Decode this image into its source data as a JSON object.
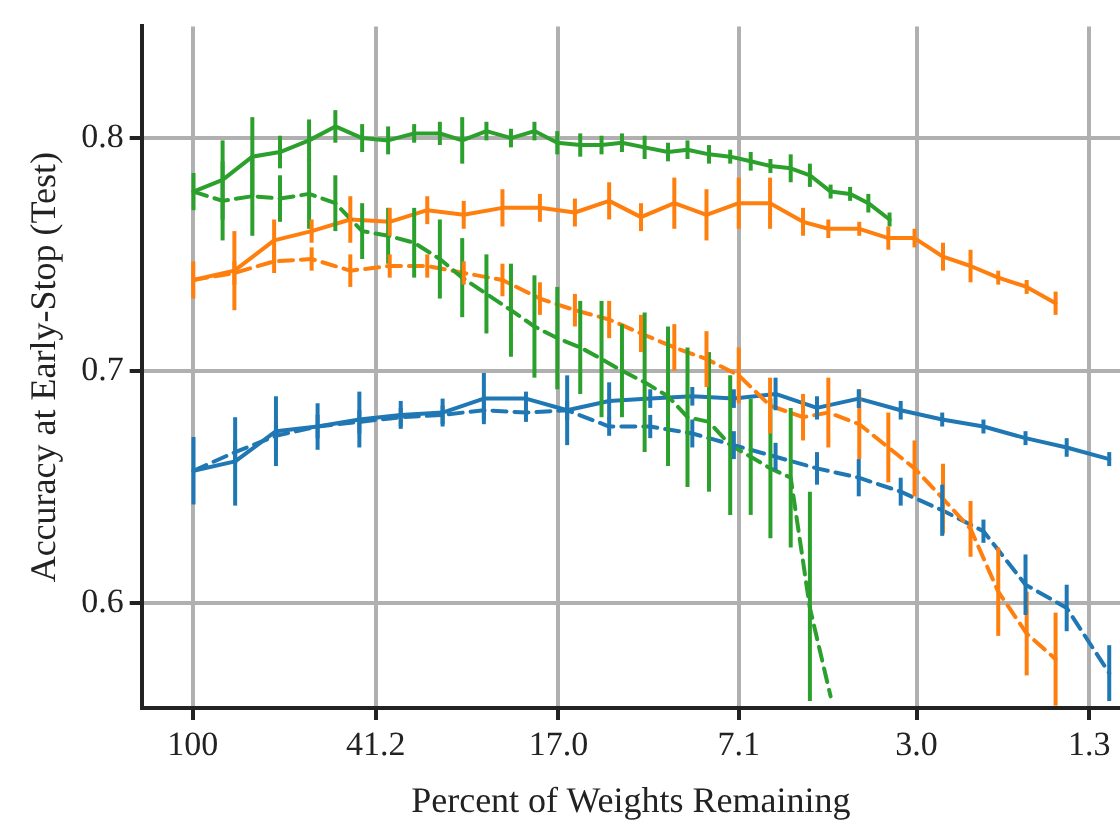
{
  "chart_data": {
    "type": "line",
    "xlabel": "Percent of Weights Remaining",
    "ylabel": "Accuracy at Early-Stop (Test)",
    "log": "x",
    "xlim": [
      128,
      1.12
    ],
    "xticks": [
      100,
      41.2,
      {
        "value": 17,
        "label": "17.0"
      },
      7.1,
      {
        "value": 3,
        "label": "3.0"
      },
      1.3
    ],
    "ylim": [
      0.555,
      0.848
    ],
    "yticks": [
      0.6,
      0.7,
      0.8
    ],
    "grid": true,
    "legend": false,
    "marker": "none",
    "series": [
      {
        "color": "#2ca02c",
        "line_style": "solid",
        "x": [
          99.6,
          86.5,
          74.9,
          65.5,
          56.9,
          50.1,
          44,
          38.8,
          34.2,
          30.2,
          27.1,
          24.1,
          21.4,
          19.1,
          17.1,
          15.3,
          13.8,
          12.5,
          11.2,
          10,
          9.1,
          8.2,
          7.4,
          6.7,
          6.09,
          5.52,
          5.03,
          4.55,
          4.14,
          3.79,
          3.42
        ],
        "values": [
          0.777,
          0.782,
          0.792,
          0.794,
          0.799,
          0.805,
          0.8,
          0.799,
          0.802,
          0.802,
          0.799,
          0.803,
          0.8,
          0.803,
          0.798,
          0.797,
          0.797,
          0.798,
          0.796,
          0.794,
          0.795,
          0.793,
          0.792,
          0.79,
          0.788,
          0.787,
          0.784,
          0.777,
          0.776,
          0.772,
          0.765
        ],
        "errors": [
          0.008,
          0.017,
          0.017,
          0.007,
          0.009,
          0.007,
          0.006,
          0.006,
          0.004,
          0.005,
          0.01,
          0.004,
          0.004,
          0.004,
          0.005,
          0.005,
          0.004,
          0.004,
          0.005,
          0.004,
          0.004,
          0.004,
          0.003,
          0.004,
          0.003,
          0.006,
          0.005,
          0.003,
          0.003,
          0.004,
          0.003
        ]
      },
      {
        "color": "#2ca02c",
        "line_style": "dashed",
        "x": [
          99.6,
          86.5,
          74.9,
          65.5,
          56.9,
          50.1,
          44,
          38.8,
          34.2,
          30.2,
          27.1,
          24.1,
          21.4,
          19.1,
          17.1,
          15.3,
          13.8,
          12.5,
          11.2,
          10,
          9.1,
          8.2,
          7.4,
          6.7,
          6.09,
          5.52,
          5.03,
          4.55
        ],
        "values": [
          0.777,
          0.773,
          0.775,
          0.774,
          0.776,
          0.772,
          0.76,
          0.758,
          0.755,
          0.748,
          0.74,
          0.733,
          0.726,
          0.719,
          0.714,
          0.71,
          0.705,
          0.7,
          0.695,
          0.689,
          0.68,
          0.678,
          0.668,
          0.663,
          0.658,
          0.654,
          0.598,
          0.56
        ],
        "errors": [
          null,
          0.017,
          0.017,
          0.01,
          0.015,
          0.012,
          0.012,
          0.012,
          0.015,
          0.017,
          0.017,
          0.017,
          0.02,
          0.022,
          0.022,
          0.02,
          0.025,
          0.02,
          0.03,
          0.03,
          0.03,
          0.03,
          0.03,
          0.025,
          0.03,
          0.03,
          [
            0.558,
            0.648
          ],
          null
        ]
      },
      {
        "color": "#ff7f0e",
        "line_style": "solid",
        "x": [
          99.7,
          81.7,
          67.4,
          56.2,
          46.6,
          38.5,
          32.1,
          26.9,
          22.3,
          18.6,
          15.7,
          13.3,
          11.4,
          9.7,
          8.3,
          7.1,
          6.1,
          5.2,
          4.6,
          3.96,
          3.44,
          3.03,
          2.64,
          2.31,
          2.02,
          1.76,
          1.53
        ],
        "values": [
          0.739,
          0.743,
          0.756,
          0.76,
          0.765,
          0.764,
          0.769,
          0.767,
          0.77,
          0.77,
          0.768,
          0.773,
          0.766,
          0.772,
          0.767,
          0.772,
          0.772,
          0.764,
          0.761,
          0.761,
          0.757,
          0.757,
          0.749,
          0.745,
          0.74,
          0.736,
          0.729
        ],
        "errors": [
          0.008,
          0.017,
          0.009,
          0.005,
          0.01,
          0.006,
          0.006,
          0.006,
          0.008,
          0.006,
          0.006,
          0.008,
          0.006,
          0.011,
          0.011,
          0.011,
          0.011,
          0.006,
          0.004,
          0.003,
          0.005,
          0.004,
          0.006,
          0.007,
          0.003,
          0.003,
          0.005
        ]
      },
      {
        "color": "#ff7f0e",
        "line_style": "dashed",
        "x": [
          99.7,
          81.7,
          67.4,
          56.2,
          46.6,
          38.5,
          32.1,
          26.9,
          22.3,
          18.6,
          15.7,
          13.3,
          11.4,
          9.7,
          8.3,
          7.1,
          6.1,
          5.2,
          4.6,
          3.96,
          3.44,
          3.03,
          2.64,
          2.31,
          2.02,
          1.76,
          1.53
        ],
        "values": [
          0.739,
          0.742,
          0.747,
          0.748,
          0.743,
          0.745,
          0.745,
          0.742,
          0.739,
          0.731,
          0.726,
          0.722,
          0.716,
          0.71,
          0.705,
          0.698,
          0.685,
          0.68,
          0.682,
          0.677,
          0.667,
          0.658,
          0.645,
          0.632,
          0.605,
          0.587,
          0.576
        ],
        "errors": [
          null,
          0.005,
          0.005,
          0.005,
          0.007,
          0.005,
          0.005,
          0.005,
          0.007,
          0.007,
          0.007,
          0.008,
          0.008,
          0.01,
          0.012,
          0.012,
          0.012,
          0.01,
          0.015,
          0.015,
          0.015,
          0.012,
          0.015,
          0.012,
          0.019,
          0.018,
          0.02
        ]
      },
      {
        "color": "#1f77b4",
        "line_style": "solid",
        "x": [
          99.6,
          81.4,
          66.8,
          54.6,
          44.6,
          36.5,
          29.8,
          24.4,
          19.9,
          16.3,
          13.3,
          10.9,
          8.89,
          7.27,
          5.94,
          4.86,
          3.97,
          3.24,
          2.65,
          2.17,
          1.77,
          1.45,
          1.18
        ],
        "values": [
          0.657,
          0.661,
          0.674,
          0.676,
          0.679,
          0.681,
          0.682,
          0.688,
          0.688,
          0.683,
          0.687,
          0.688,
          0.689,
          0.688,
          0.69,
          0.684,
          0.688,
          0.683,
          0.679,
          0.676,
          0.671,
          0.667,
          0.662
        ],
        "errors": [
          0.0145,
          0.019,
          0.015,
          0.01,
          0.012,
          0.006,
          0.006,
          0.011,
          0.003,
          0.015,
          0.008,
          0.004,
          0.004,
          0.004,
          0.007,
          0.005,
          0.004,
          0.004,
          0.003,
          0.003,
          0.003,
          0.004,
          0.003
        ]
      },
      {
        "color": "#1f77b4",
        "line_style": "dashed",
        "x": [
          99.6,
          81.4,
          66.8,
          54.6,
          44.6,
          36.5,
          29.8,
          24.4,
          19.9,
          16.3,
          13.3,
          10.9,
          8.89,
          7.27,
          5.94,
          4.86,
          3.97,
          3.24,
          2.65,
          2.17,
          1.77,
          1.45,
          1.18
        ],
        "values": [
          0.657,
          0.665,
          0.672,
          0.676,
          0.678,
          0.68,
          0.681,
          0.683,
          0.682,
          0.683,
          0.676,
          0.676,
          0.673,
          0.668,
          0.663,
          0.658,
          0.654,
          0.648,
          0.64,
          0.631,
          0.608,
          0.598,
          0.57
        ],
        "errors": [
          null,
          0.005,
          0.006,
          0.005,
          0.005,
          0.004,
          0.004,
          0.004,
          0.004,
          0.004,
          0.004,
          0.005,
          0.006,
          0.006,
          0.006,
          0.007,
          0.008,
          0.006,
          0.011,
          0.005,
          0.013,
          0.01,
          0.012
        ]
      }
    ]
  }
}
